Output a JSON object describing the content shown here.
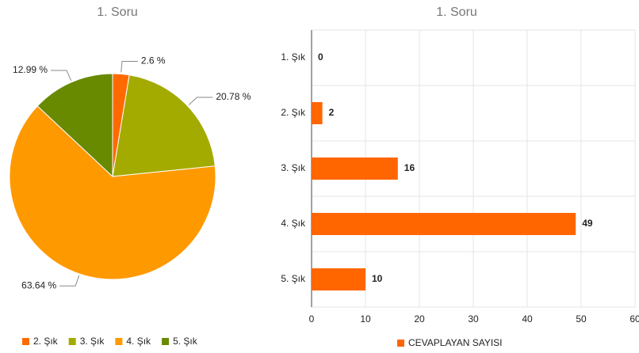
{
  "chart_data": [
    {
      "type": "pie",
      "title": "1. Soru",
      "categories": [
        "2. Şık",
        "3. Şık",
        "4. Şık",
        "5. Şık"
      ],
      "values": [
        2.6,
        20.78,
        63.64,
        12.99
      ],
      "value_labels": [
        "2.6 %",
        "20.78 %",
        "63.64 %",
        "12.99 %"
      ],
      "colors": [
        "#ff6a00",
        "#a3ab00",
        "#ff9900",
        "#688a00"
      ],
      "legend": "bottom"
    },
    {
      "type": "hbar",
      "title": "1. Soru",
      "categories": [
        "1. Şık",
        "2. Şık",
        "3. Şık",
        "4. Şık",
        "5. Şık"
      ],
      "series": [
        {
          "name": "CEVAPLAYAN SAYISI",
          "color": "#ff6600",
          "values": [
            0,
            2,
            16,
            49,
            10
          ]
        }
      ],
      "xlim": [
        0,
        60
      ],
      "xticks": [
        0,
        10,
        20,
        30,
        40,
        50,
        60
      ],
      "grid": true,
      "legend": "bottom"
    }
  ]
}
